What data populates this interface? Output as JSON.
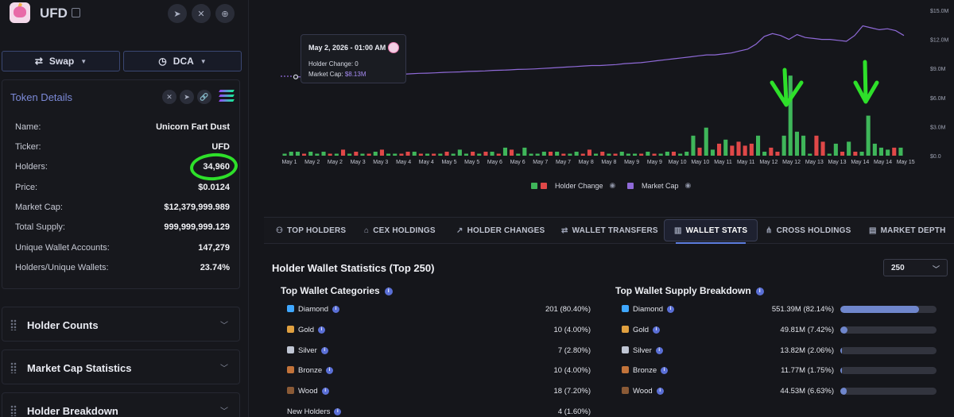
{
  "token": {
    "name": "UFD",
    "header_icons": [
      "telegram-icon",
      "x-icon",
      "globe-icon"
    ]
  },
  "actions": {
    "swap_label": "Swap",
    "dca_label": "DCA"
  },
  "token_details": {
    "title": "Token Details",
    "rows": [
      {
        "key": "Name:",
        "value": "Unicorn Fart Dust"
      },
      {
        "key": "Ticker:",
        "value": "UFD"
      },
      {
        "key": "Holders:",
        "value": "34,960"
      },
      {
        "key": "Price:",
        "value": "$0.0124"
      },
      {
        "key": "Market Cap:",
        "value": "$12,379,999.989"
      },
      {
        "key": "Total Supply:",
        "value": "999,999,999.129"
      },
      {
        "key": "Unique Wallet Accounts:",
        "value": "147,279"
      },
      {
        "key": "Holders/Unique Wallets:",
        "value": "23.74%"
      }
    ]
  },
  "accordions": [
    {
      "label": "Holder Counts"
    },
    {
      "label": "Market Cap Statistics"
    },
    {
      "label": "Holder Breakdown"
    }
  ],
  "tooltip": {
    "date": "May 2, 2026 - 01:00 AM",
    "holder_change_label": "Holder Change:",
    "holder_change_value": "0",
    "market_cap_label": "Market Cap:",
    "market_cap_value": "$8.13M"
  },
  "chart_data": {
    "type": "bar",
    "x_ticks": [
      "May 1",
      "May 2",
      "May 2",
      "May 3",
      "May 3",
      "May 4",
      "May 4",
      "May 5",
      "May 5",
      "May 6",
      "May 6",
      "May 7",
      "May 7",
      "May 8",
      "May 8",
      "May 9",
      "May 9",
      "May 10",
      "May 10",
      "May 11",
      "May 11",
      "May 12",
      "May 12",
      "May 13",
      "May 13",
      "May 14",
      "May 14",
      "May 15"
    ],
    "y_ticks_right": [
      "$15.0M",
      "$12.0M",
      "$9.0M",
      "$6.0M",
      "$3.0M",
      "$0.0"
    ],
    "ylim_market_cap": [
      0,
      15
    ],
    "series": [
      {
        "name": "Holder Change",
        "colors": {
          "positive": "#3fb65a",
          "negative": "#e04848"
        },
        "values": [
          1,
          2,
          2,
          -1,
          2,
          1,
          2,
          -1,
          1,
          -3,
          1,
          -2,
          1,
          -1,
          2,
          -3,
          1,
          1,
          -1,
          -2,
          2,
          -1,
          1,
          -1,
          1,
          -2,
          1,
          3,
          1,
          -2,
          1,
          -2,
          2,
          -1,
          4,
          -3,
          1,
          4,
          1,
          1,
          2,
          -2,
          2,
          -1,
          1,
          2,
          -1,
          -3,
          1,
          -2,
          1,
          -1,
          2,
          1,
          1,
          -1,
          2,
          -1,
          1,
          2,
          -2,
          1,
          2,
          10,
          -4,
          14,
          3,
          -6,
          8,
          -5,
          -7,
          -5,
          -6,
          10,
          2,
          -4,
          -2,
          10,
          40,
          12,
          10,
          1,
          -10,
          -7,
          1,
          6,
          -2,
          7,
          -2,
          2,
          20,
          6,
          4,
          3,
          -4,
          4
        ],
        "scale_max": 48
      },
      {
        "name": "Market Cap",
        "color": "#8f6ad8",
        "unit": "$M",
        "values": [
          8.13,
          8.13,
          8.15,
          8.18,
          8.2,
          8.22,
          8.25,
          8.28,
          8.3,
          8.3,
          8.32,
          8.35,
          8.37,
          8.4,
          8.45,
          8.5,
          8.52,
          8.55,
          8.6,
          8.62,
          8.65,
          8.7,
          8.72,
          8.75,
          8.8,
          8.82,
          8.85,
          8.9,
          8.92,
          8.95,
          9.0,
          9.05,
          9.1,
          9.15,
          9.2,
          9.25,
          9.3,
          9.3,
          9.35,
          9.4,
          9.5,
          9.55,
          9.6,
          9.7,
          9.8,
          9.9,
          10.0,
          10.1,
          10.2,
          10.3,
          10.4,
          10.4,
          10.5,
          10.6,
          10.8,
          11.0,
          11.5,
          12.3,
          12.6,
          12.4,
          12.0,
          12.5,
          12.2,
          12.1,
          12.0,
          12.0,
          11.9,
          11.8,
          12.4,
          13.4,
          13.2,
          13.0,
          13.1,
          12.9,
          12.4
        ]
      }
    ]
  },
  "legend": [
    {
      "name": "Holder Change"
    },
    {
      "name": "Market Cap"
    }
  ],
  "tabs": [
    {
      "label": "TOP HOLDERS",
      "icon": "users-icon"
    },
    {
      "label": "CEX HOLDINGS",
      "icon": "bank-icon"
    },
    {
      "label": "HOLDER CHANGES",
      "icon": "trend-icon"
    },
    {
      "label": "WALLET TRANSFERS",
      "icon": "transfer-icon"
    },
    {
      "label": "WALLET STATS",
      "icon": "bar-chart-icon"
    },
    {
      "label": "CROSS HOLDINGS",
      "icon": "network-icon"
    },
    {
      "label": "MARKET DEPTH",
      "icon": "depth-icon"
    }
  ],
  "wallet_stats": {
    "title": "Holder Wallet Statistics (Top 250)",
    "select_value": "250",
    "categories_title": "Top Wallet Categories",
    "supply_title": "Top Wallet Supply Breakdown",
    "categories": [
      {
        "name": "Diamond",
        "value": "201 (80.40%)",
        "color": "#3fa7ff"
      },
      {
        "name": "Gold",
        "value": "10 (4.00%)",
        "color": "#e0a040"
      },
      {
        "name": "Silver",
        "value": "7 (2.80%)",
        "color": "#c0c6d4"
      },
      {
        "name": "Bronze",
        "value": "10 (4.00%)",
        "color": "#c2733a"
      },
      {
        "name": "Wood",
        "value": "18 (7.20%)",
        "color": "#8a5a36"
      },
      {
        "name": "New Holders",
        "value": "4 (1.60%)",
        "color": ""
      }
    ],
    "supply": [
      {
        "name": "Diamond",
        "value": "551.39M (82.14%)",
        "pct": 82.14,
        "color": "#3fa7ff"
      },
      {
        "name": "Gold",
        "value": "49.81M (7.42%)",
        "pct": 7.42,
        "color": "#e0a040"
      },
      {
        "name": "Silver",
        "value": "13.82M (2.06%)",
        "pct": 2.06,
        "color": "#c0c6d4"
      },
      {
        "name": "Bronze",
        "value": "11.77M (1.75%)",
        "pct": 1.75,
        "color": "#c2733a"
      },
      {
        "name": "Wood",
        "value": "44.53M (6.63%)",
        "pct": 6.63,
        "color": "#8a5a36"
      }
    ]
  }
}
